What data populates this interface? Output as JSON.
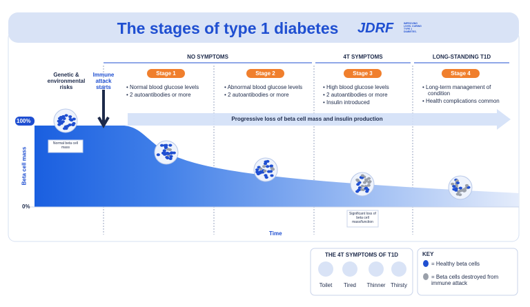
{
  "header": {
    "title": "The stages of type 1 diabetes",
    "logo": "JDRF",
    "tagline": "IMPROVING LIVES. CURING TYPE 1 DIABETES."
  },
  "phases": [
    "NO SYMPTOMS",
    "4T SYMPTOMS",
    "LONG-STANDING T1D"
  ],
  "stages": [
    {
      "label": "Stage 1",
      "bullets": [
        "Normal blood glucose levels",
        "2 autoantibodies or more"
      ]
    },
    {
      "label": "Stage 2",
      "bullets": [
        "Abnormal blood glucose levels",
        "2 autoantibodies or more"
      ]
    },
    {
      "label": "Stage 3",
      "bullets": [
        "High blood glucose levels",
        "2 autoantibodies or more",
        "Insulin introduced"
      ]
    },
    {
      "label": "Stage 4",
      "bullets": [
        "Long-term management of condition",
        "Health complications common"
      ]
    }
  ],
  "risks": "Genetic & environmental risks",
  "immune": "Immune attack starts",
  "axis": {
    "y_label": "Beta cell mass",
    "top": "100%",
    "bottom": "0%",
    "x_label": "Time"
  },
  "progress": "Progressive loss of beta cell mass and insulin production",
  "notes": {
    "normal": "Normal beta cell mass",
    "loss": "Significant loss of beta cell mass/function"
  },
  "symptoms": {
    "title": "THE 4T SYMPTOMS OF T1D",
    "items": [
      "Toilet",
      "Tired",
      "Thinner",
      "Thirsty"
    ]
  },
  "key": {
    "title": "KEY",
    "items": [
      "= Healthy beta cells",
      "= Beta cells destroyed from immune attack"
    ]
  }
}
